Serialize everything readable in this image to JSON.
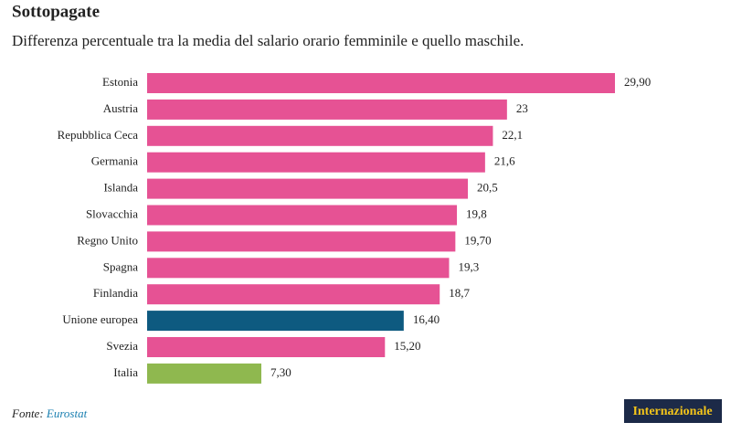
{
  "chart_data": {
    "type": "hbar",
    "title": "Sottopagate",
    "subtitle": "Differenza percentuale tra la media del salario orario femminile e quello maschile.",
    "categories": [
      "Estonia",
      "Austria",
      "Repubblica Ceca",
      "Germania",
      "Islanda",
      "Slovacchia",
      "Regno Unito",
      "Spagna",
      "Finlandia",
      "Unione europea",
      "Svezia",
      "Italia"
    ],
    "values": [
      29.9,
      23,
      22.1,
      21.6,
      20.5,
      19.8,
      19.7,
      19.3,
      18.7,
      16.4,
      15.2,
      7.3
    ],
    "value_labels": [
      "29,90",
      "23",
      "22,1",
      "21,6",
      "20,5",
      "19,8",
      "19,70",
      "19,3",
      "18,7",
      "16,40",
      "15,20",
      "7,30"
    ],
    "colors": [
      "#e65294",
      "#e65294",
      "#e65294",
      "#e65294",
      "#e65294",
      "#e65294",
      "#e65294",
      "#e65294",
      "#e65294",
      "#0e5a80",
      "#e65294",
      "#8fb84f"
    ],
    "source_label": "Fonte:",
    "source": "Eurostat",
    "logo": "Internazionale"
  }
}
